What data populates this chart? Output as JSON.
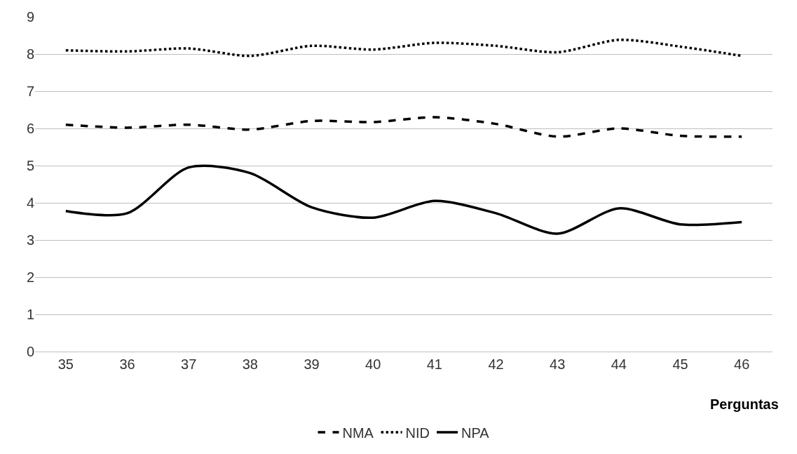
{
  "chart_data": {
    "type": "line",
    "xlabel": "Perguntas",
    "categories": [
      "35",
      "36",
      "37",
      "38",
      "39",
      "40",
      "41",
      "42",
      "43",
      "44",
      "45",
      "46"
    ],
    "series": [
      {
        "name": "NMA",
        "color": "#000000",
        "line_style": "dashed",
        "values": [
          6.1,
          6.02,
          6.1,
          5.97,
          6.2,
          6.17,
          6.3,
          6.12,
          5.78,
          6.0,
          5.8,
          5.78
        ]
      },
      {
        "name": "NID",
        "color": "#000000",
        "line_style": "dotted",
        "values": [
          8.1,
          8.07,
          8.15,
          7.95,
          8.22,
          8.12,
          8.3,
          8.22,
          8.05,
          8.38,
          8.2,
          7.95
        ]
      },
      {
        "name": "NPA",
        "color": "#000000",
        "line_style": "solid",
        "values": [
          3.78,
          3.72,
          4.95,
          4.8,
          3.88,
          3.6,
          4.05,
          3.72,
          3.17,
          3.85,
          3.42,
          3.48
        ]
      }
    ],
    "ylim": [
      0,
      9
    ],
    "yticks": [
      0,
      1,
      2,
      3,
      4,
      5,
      6,
      7,
      8,
      9
    ],
    "grid": "y",
    "legend": "bottom",
    "marker": "none"
  }
}
